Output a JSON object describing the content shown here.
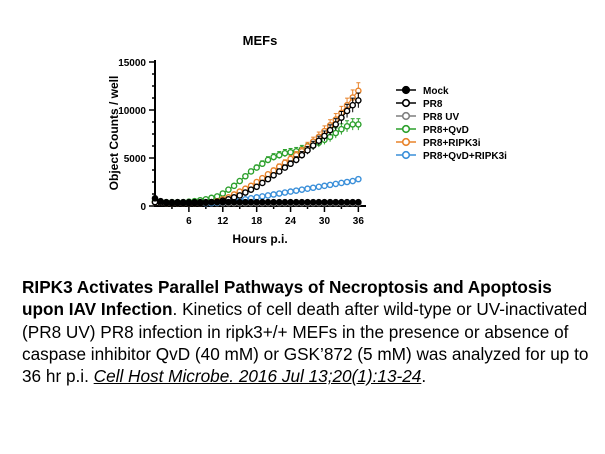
{
  "chart_data": {
    "type": "line",
    "title": "MEFs",
    "xlabel": "Hours p.i.",
    "ylabel": "Object Counts / well",
    "xlim": [
      0,
      37
    ],
    "ylim": [
      0,
      15000
    ],
    "xticks": [
      "6",
      "12",
      "18",
      "24",
      "30",
      "36"
    ],
    "yticks": [
      "0",
      "5000",
      "10000",
      "15000"
    ],
    "legend_position": "right",
    "grid": false,
    "x": [
      0,
      1,
      2,
      3,
      4,
      5,
      6,
      7,
      8,
      9,
      10,
      11,
      12,
      13,
      14,
      15,
      16,
      17,
      18,
      19,
      20,
      21,
      22,
      23,
      24,
      25,
      26,
      27,
      28,
      29,
      30,
      31,
      32,
      33,
      34,
      35,
      36
    ],
    "series": [
      {
        "name": "Mock",
        "color": "#000000",
        "filled": true,
        "values": [
          800,
          500,
          400,
          400,
          400,
          400,
          400,
          400,
          400,
          400,
          400,
          400,
          400,
          400,
          400,
          400,
          400,
          400,
          400,
          400,
          400,
          400,
          400,
          400,
          400,
          400,
          400,
          400,
          400,
          400,
          400,
          400,
          400,
          400,
          400,
          400,
          400
        ]
      },
      {
        "name": "PR8",
        "color": "#000000",
        "filled": false,
        "values": [
          400,
          350,
          300,
          300,
          300,
          300,
          300,
          300,
          300,
          350,
          400,
          450,
          550,
          700,
          900,
          1100,
          1400,
          1700,
          2000,
          2400,
          2800,
          3200,
          3600,
          4000,
          4400,
          4800,
          5300,
          5800,
          6300,
          6800,
          7300,
          7900,
          8500,
          9200,
          9900,
          10500,
          11000
        ]
      },
      {
        "name": "PR8 UV",
        "color": "#7f7f7f",
        "filled": false,
        "values": [
          400,
          350,
          300,
          300,
          300,
          300,
          300,
          300,
          300,
          300,
          300,
          300,
          300,
          300,
          300,
          300,
          300,
          300,
          300,
          300,
          300,
          300,
          300,
          300,
          300,
          300,
          300,
          300,
          300,
          300,
          300,
          300,
          300,
          300,
          300,
          300,
          300
        ]
      },
      {
        "name": "PR8+QvD",
        "color": "#2ca02c",
        "filled": false,
        "values": [
          500,
          450,
          400,
          400,
          400,
          400,
          450,
          500,
          600,
          700,
          850,
          1000,
          1300,
          1700,
          2100,
          2600,
          3100,
          3600,
          4000,
          4400,
          4800,
          5100,
          5300,
          5500,
          5600,
          5700,
          5900,
          6100,
          6300,
          6600,
          6900,
          7200,
          7600,
          8000,
          8300,
          8500,
          8500
        ]
      },
      {
        "name": "PR8+RIPK3i",
        "color": "#e8832a",
        "filled": false,
        "values": [
          400,
          350,
          300,
          300,
          300,
          300,
          300,
          300,
          300,
          350,
          400,
          500,
          700,
          900,
          1200,
          1500,
          1800,
          2100,
          2500,
          2900,
          3300,
          3700,
          4100,
          4500,
          4900,
          5300,
          5700,
          6200,
          6700,
          7200,
          7800,
          8400,
          9000,
          9700,
          10500,
          11300,
          12000
        ]
      },
      {
        "name": "PR8+QvD+RIPK3i",
        "color": "#3a8fd9",
        "filled": false,
        "values": [
          400,
          350,
          300,
          300,
          300,
          300,
          300,
          300,
          300,
          300,
          300,
          350,
          400,
          450,
          500,
          600,
          700,
          800,
          900,
          1000,
          1100,
          1200,
          1300,
          1400,
          1500,
          1600,
          1700,
          1800,
          1900,
          2000,
          2100,
          2200,
          2300,
          2400,
          2500,
          2600,
          2800
        ]
      }
    ]
  },
  "caption": {
    "bold": "RIPK3 Activates Parallel Pathways of Necroptosis and Apoptosis upon IAV Infection",
    "text": ". Kinetics of cell death after wild-type or UV-inactivated (PR8 UV) PR8 infection in ripk3+/+ MEFs in the presence or absence of caspase inhibitor QvD (40 mM) or GSK’872 (5 mM) was analyzed for up to 36 hr p.i. ",
    "citation": "Cell Host Microbe. 2016 Jul 13;20(1):13-24",
    "end": "."
  }
}
